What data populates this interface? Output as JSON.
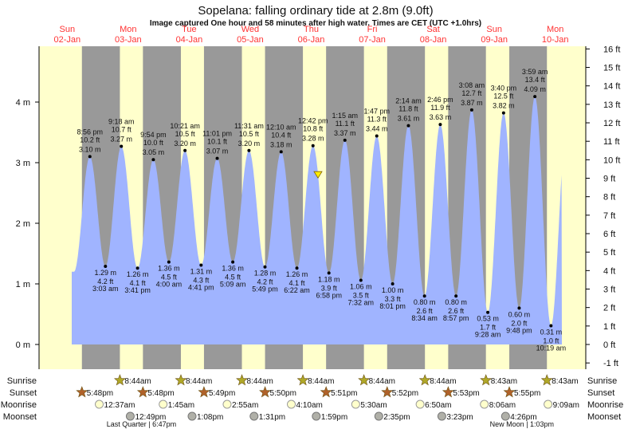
{
  "chart_data": {
    "type": "area",
    "title": "Sopelana: falling  ordinary tide at 2.8m (9.0ft)",
    "subtitle": "Image captured One hour and 58 minutes after high water. Times are CET (UTC +1.0hrs)",
    "days": [
      {
        "dow": "Sun",
        "date": "02-Jan"
      },
      {
        "dow": "Mon",
        "date": "03-Jan"
      },
      {
        "dow": "Tue",
        "date": "04-Jan"
      },
      {
        "dow": "Wed",
        "date": "05-Jan"
      },
      {
        "dow": "Thu",
        "date": "06-Jan"
      },
      {
        "dow": "Fri",
        "date": "07-Jan"
      },
      {
        "dow": "Sat",
        "date": "08-Jan"
      },
      {
        "dow": "Sun",
        "date": "09-Jan"
      },
      {
        "dow": "Mon",
        "date": "10-Jan"
      }
    ],
    "y_left": {
      "unit": "m",
      "ticks": [
        "0 m",
        "1 m",
        "2 m",
        "3 m",
        "4 m"
      ],
      "values": [
        0,
        1,
        2,
        3,
        4
      ]
    },
    "y_right": {
      "unit": "ft",
      "ticks": [
        "-1 ft",
        "0 ft",
        "1 ft",
        "2 ft",
        "3 ft",
        "4 ft",
        "5 ft",
        "6 ft",
        "7 ft",
        "8 ft",
        "9 ft",
        "10 ft",
        "11 ft",
        "12 ft",
        "13 ft",
        "14 ft",
        "15 ft",
        "16 ft"
      ],
      "values": [
        -1,
        0,
        1,
        2,
        3,
        4,
        5,
        6,
        7,
        8,
        9,
        10,
        11,
        12,
        13,
        14,
        15,
        16
      ]
    },
    "current": {
      "height_m": 2.8,
      "height_ft": 9.0,
      "state": "falling",
      "date": "06-Jan",
      "time": "2:40 pm"
    },
    "extremes": [
      {
        "type": "high",
        "date": "02-Jan",
        "time": "8:56 pm",
        "m": "3.10 m",
        "ft": "10.2 ft",
        "value": 3.1
      },
      {
        "type": "low",
        "date": "03-Jan",
        "time": "3:03 am",
        "m": "1.29 m",
        "ft": "4.2 ft",
        "value": 1.29
      },
      {
        "type": "high",
        "date": "03-Jan",
        "time": "9:18 am",
        "m": "3.27 m",
        "ft": "10.7 ft",
        "value": 3.27
      },
      {
        "type": "low",
        "date": "03-Jan",
        "time": "3:41 pm",
        "m": "1.26 m",
        "ft": "4.1 ft",
        "value": 1.26
      },
      {
        "type": "high",
        "date": "03-Jan",
        "time": "9:54 pm",
        "m": "3.05 m",
        "ft": "10.0 ft",
        "value": 3.05
      },
      {
        "type": "low",
        "date": "04-Jan",
        "time": "4:00 am",
        "m": "1.36 m",
        "ft": "4.5 ft",
        "value": 1.36
      },
      {
        "type": "high",
        "date": "04-Jan",
        "time": "10:21 am",
        "m": "3.20 m",
        "ft": "10.5 ft",
        "value": 3.2
      },
      {
        "type": "low",
        "date": "04-Jan",
        "time": "4:41 pm",
        "m": "1.31 m",
        "ft": "4.3 ft",
        "value": 1.31
      },
      {
        "type": "high",
        "date": "04-Jan",
        "time": "11:01 pm",
        "m": "3.07 m",
        "ft": "10.1 ft",
        "value": 3.07
      },
      {
        "type": "low",
        "date": "05-Jan",
        "time": "5:09 am",
        "m": "1.36 m",
        "ft": "4.5 ft",
        "value": 1.36
      },
      {
        "type": "high",
        "date": "05-Jan",
        "time": "11:31 am",
        "m": "3.20 m",
        "ft": "10.5 ft",
        "value": 3.2
      },
      {
        "type": "low",
        "date": "05-Jan",
        "time": "5:49 pm",
        "m": "1.28 m",
        "ft": "4.2 ft",
        "value": 1.28
      },
      {
        "type": "high",
        "date": "06-Jan",
        "time": "12:10 am",
        "m": "3.18 m",
        "ft": "10.4 ft",
        "value": 3.18
      },
      {
        "type": "low",
        "date": "06-Jan",
        "time": "6:22 am",
        "m": "1.26 m",
        "ft": "4.1 ft",
        "value": 1.26
      },
      {
        "type": "high",
        "date": "06-Jan",
        "time": "12:42 pm",
        "m": "3.28 m",
        "ft": "10.8 ft",
        "value": 3.28
      },
      {
        "type": "low",
        "date": "06-Jan",
        "time": "6:58 pm",
        "m": "1.18 m",
        "ft": "3.9 ft",
        "value": 1.18
      },
      {
        "type": "high",
        "date": "07-Jan",
        "time": "1:15 am",
        "m": "3.37 m",
        "ft": "11.1 ft",
        "value": 3.37
      },
      {
        "type": "low",
        "date": "07-Jan",
        "time": "7:32 am",
        "m": "1.06 m",
        "ft": "3.5 ft",
        "value": 1.06
      },
      {
        "type": "high",
        "date": "07-Jan",
        "time": "1:47 pm",
        "m": "3.44 m",
        "ft": "11.3 ft",
        "value": 3.44
      },
      {
        "type": "low",
        "date": "07-Jan",
        "time": "8:01 pm",
        "m": "1.00 m",
        "ft": "3.3 ft",
        "value": 1.0
      },
      {
        "type": "high",
        "date": "08-Jan",
        "time": "2:14 am",
        "m": "3.61 m",
        "ft": "11.8 ft",
        "value": 3.61
      },
      {
        "type": "low",
        "date": "08-Jan",
        "time": "8:34 am",
        "m": "0.80 m",
        "ft": "2.6 ft",
        "value": 0.8
      },
      {
        "type": "high",
        "date": "08-Jan",
        "time": "2:46 pm",
        "m": "3.63 m",
        "ft": "11.9 ft",
        "value": 3.63
      },
      {
        "type": "low",
        "date": "08-Jan",
        "time": "8:57 pm",
        "m": "0.80 m",
        "ft": "2.6 ft",
        "value": 0.8
      },
      {
        "type": "high",
        "date": "09-Jan",
        "time": "3:08 am",
        "m": "3.87 m",
        "ft": "12.7 ft",
        "value": 3.87
      },
      {
        "type": "low",
        "date": "09-Jan",
        "time": "9:28 am",
        "m": "0.53 m",
        "ft": "1.7 ft",
        "value": 0.53
      },
      {
        "type": "high",
        "date": "09-Jan",
        "time": "3:40 pm",
        "m": "3.82 m",
        "ft": "12.5 ft",
        "value": 3.82
      },
      {
        "type": "low",
        "date": "09-Jan",
        "time": "9:48 pm",
        "m": "0.60 m",
        "ft": "2.0 ft",
        "value": 0.6
      },
      {
        "type": "high",
        "date": "10-Jan",
        "time": "3:59 am",
        "m": "4.09 m",
        "ft": "13.4 ft",
        "value": 4.09
      },
      {
        "type": "low",
        "date": "10-Jan",
        "time": "10:19 am",
        "m": "0.31 m",
        "ft": "1.0 ft",
        "value": 0.31
      }
    ],
    "astro": {
      "labels": {
        "sunrise": "Sunrise",
        "sunset": "Sunset",
        "moonrise": "Moonrise",
        "moonset": "Moonset"
      },
      "sunrise": [
        {
          "date": "03-Jan",
          "time": "8:44am"
        },
        {
          "date": "04-Jan",
          "time": "8:44am"
        },
        {
          "date": "05-Jan",
          "time": "8:44am"
        },
        {
          "date": "06-Jan",
          "time": "8:44am"
        },
        {
          "date": "07-Jan",
          "time": "8:44am"
        },
        {
          "date": "08-Jan",
          "time": "8:44am"
        },
        {
          "date": "09-Jan",
          "time": "8:43am"
        },
        {
          "date": "10-Jan",
          "time": "8:43am"
        }
      ],
      "sunset": [
        {
          "date": "02-Jan",
          "time": "5:48pm"
        },
        {
          "date": "03-Jan",
          "time": "5:48pm"
        },
        {
          "date": "04-Jan",
          "time": "5:49pm"
        },
        {
          "date": "05-Jan",
          "time": "5:50pm"
        },
        {
          "date": "06-Jan",
          "time": "5:51pm"
        },
        {
          "date": "07-Jan",
          "time": "5:52pm"
        },
        {
          "date": "08-Jan",
          "time": "5:53pm"
        },
        {
          "date": "09-Jan",
          "time": "5:55pm"
        }
      ],
      "moonrise": [
        {
          "date": "03-Jan",
          "time": "12:37am"
        },
        {
          "date": "04-Jan",
          "time": "1:45am"
        },
        {
          "date": "05-Jan",
          "time": "2:55am"
        },
        {
          "date": "06-Jan",
          "time": "4:10am"
        },
        {
          "date": "07-Jan",
          "time": "5:30am"
        },
        {
          "date": "08-Jan",
          "time": "6:50am"
        },
        {
          "date": "09-Jan",
          "time": "8:06am"
        },
        {
          "date": "10-Jan",
          "time": "9:09am"
        }
      ],
      "moonset": [
        {
          "date": "03-Jan",
          "time": "12:49pm"
        },
        {
          "date": "04-Jan",
          "time": "1:08pm"
        },
        {
          "date": "05-Jan",
          "time": "1:31pm"
        },
        {
          "date": "06-Jan",
          "time": "1:59pm"
        },
        {
          "date": "07-Jan",
          "time": "2:35pm"
        },
        {
          "date": "08-Jan",
          "time": "3:23pm"
        },
        {
          "date": "09-Jan",
          "time": "4:26pm"
        }
      ],
      "phases": [
        {
          "text": "Last Quarter | 6:47pm",
          "date": "03-Jan"
        },
        {
          "text": "New Moon | 1:03pm",
          "date": "10-Jan"
        }
      ]
    },
    "colors": {
      "day": "#ffffcc",
      "night": "#999999",
      "water": "#a0b4ff",
      "day_label": "#ff3333",
      "sunrise_icon": "#b0a828",
      "sunset_icon": "#b0622a",
      "moonrise_icon": "#ffffcc",
      "moonset_icon": "#b0b0a8",
      "marker": "#ffee00"
    },
    "grid": false,
    "ylim_m": [
      -0.3,
      4.9
    ]
  }
}
